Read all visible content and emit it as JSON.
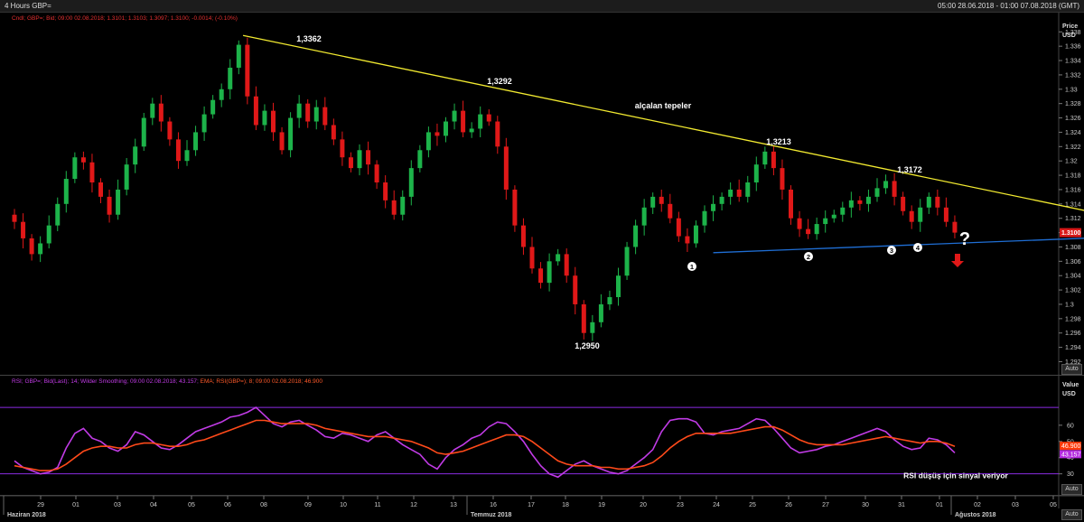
{
  "window": {
    "title": "4 Hours GBP=",
    "range": "05:00 28.06.2018 - 01:00 07.08.2018 (GMT)"
  },
  "price_panel": {
    "legend": "Cndl; GBP=; Bid; 09:00 02.08.2018; 1.3101; 1.3103; 1.3097; 1.3100; -0.0014; (-0.10%)",
    "axis_title": "Price",
    "axis_unit": "USD",
    "last_price_tag": "1.3100",
    "auto_label": "Auto"
  },
  "rsi_panel": {
    "legend_rsi": "RSI; GBP=; Bid(Last); 14; Wilder Smoothing; 09:00 02.08.2018; 43.157;",
    "legend_ema": "EMA; RSI(GBP=); 8; 09:00 02.08.2018; 46.900",
    "axis_title": "Value",
    "axis_unit": "USD",
    "ema_tag": "46.900",
    "rsi_tag": "43.157",
    "auto_label": "Auto"
  },
  "x_axis": {
    "ticks": [
      "29",
      "01",
      "03",
      "04",
      "05",
      "06",
      "08",
      "09",
      "10",
      "11",
      "12",
      "13",
      "16",
      "17",
      "18",
      "19",
      "20",
      "23",
      "24",
      "25",
      "26",
      "27",
      "30",
      "31",
      "01",
      "02",
      "03",
      "05",
      "07"
    ],
    "months": [
      "Haziran 2018",
      "Temmuz 2018",
      "Ağustos 2018"
    ],
    "auto_label": "Auto"
  },
  "annotations": {
    "peak1": "1,3362",
    "peak2": "1,3292",
    "peak3": "1,3213",
    "peak4": "1,3172",
    "low": "1,2950",
    "falling_peaks": "alçalan tepeler",
    "rsi_signal": "RSI düşüş için sinyal veriyor",
    "question": "?",
    "touch_points": [
      "1",
      "2",
      "3",
      "4"
    ]
  },
  "chart_data": [
    {
      "type": "candlestick",
      "instrument": "GBP=",
      "timeframe": "4 Hours",
      "y_ticks": [
        "1.338",
        "1.336",
        "1.334",
        "1.332",
        "1.33",
        "1.328",
        "1.326",
        "1.324",
        "1.322",
        "1.32",
        "1.318",
        "1.316",
        "1.314",
        "1.312",
        "1.31",
        "1.308",
        "1.306",
        "1.304",
        "1.302",
        "1.3",
        "1.298",
        "1.296",
        "1.294",
        "1.292"
      ],
      "ylim": [
        1.2908,
        1.3398
      ],
      "close": [
        1.3115,
        1.3092,
        1.307,
        1.3085,
        1.311,
        1.314,
        1.3175,
        1.3205,
        1.3198,
        1.317,
        1.315,
        1.3125,
        1.316,
        1.3195,
        1.322,
        1.326,
        1.328,
        1.3255,
        1.323,
        1.32,
        1.3215,
        1.324,
        1.3265,
        1.3285,
        1.33,
        1.333,
        1.3362,
        1.329,
        1.325,
        1.327,
        1.324,
        1.3215,
        1.326,
        1.328,
        1.3255,
        1.3275,
        1.325,
        1.323,
        1.3205,
        1.319,
        1.3215,
        1.3195,
        1.317,
        1.3145,
        1.3125,
        1.315,
        1.319,
        1.3215,
        1.324,
        1.3235,
        1.3255,
        1.327,
        1.324,
        1.3245,
        1.3265,
        1.3255,
        1.322,
        1.316,
        1.311,
        1.308,
        1.305,
        1.303,
        1.306,
        1.307,
        1.304,
        1.3,
        1.296,
        1.2975,
        1.3,
        1.301,
        1.304,
        1.308,
        1.311,
        1.3135,
        1.315,
        1.314,
        1.312,
        1.3095,
        1.3085,
        1.311,
        1.313,
        1.314,
        1.315,
        1.316,
        1.315,
        1.317,
        1.3195,
        1.3213,
        1.319,
        1.316,
        1.312,
        1.3105,
        1.3098,
        1.3112,
        1.312,
        1.3125,
        1.3135,
        1.3145,
        1.314,
        1.315,
        1.3162,
        1.3172,
        1.315,
        1.313,
        1.3115,
        1.3135,
        1.315,
        1.3135,
        1.3115,
        1.31
      ],
      "trendlines": [
        {
          "name": "alçalan tepeler",
          "from": [
            26.5,
            1.3375
          ],
          "to": [
            128,
            1.3121
          ],
          "color": "#f2ea30"
        },
        {
          "name": "support",
          "from": [
            81,
            1.3072
          ],
          "to": [
            128,
            1.3094
          ],
          "color": "#1f6ed4"
        }
      ],
      "last": 1.31,
      "colors": {
        "up": "#1db34a",
        "down": "#e01818",
        "background": "#000000"
      }
    },
    {
      "type": "line",
      "name": "RSI",
      "y_ticks": [
        "60",
        "50",
        "40",
        "30"
      ],
      "ylim": [
        17,
        85
      ],
      "reference_lines": [
        71,
        30
      ],
      "series": [
        {
          "name": "RSI",
          "color": "#c13be6",
          "values": [
            38,
            34,
            32,
            30,
            31,
            34,
            46,
            55,
            58,
            52,
            50,
            46,
            44,
            48,
            56,
            54,
            50,
            46,
            45,
            48,
            52,
            56,
            58,
            60,
            62,
            65,
            66,
            68,
            71,
            66,
            61,
            59,
            62,
            63,
            60,
            57,
            53,
            52,
            55,
            54,
            52,
            50,
            54,
            56,
            52,
            48,
            45,
            42,
            36,
            33,
            40,
            45,
            48,
            52,
            54,
            59,
            62,
            61,
            56,
            50,
            42,
            35,
            30,
            28,
            32,
            36,
            38,
            35,
            33,
            31,
            30,
            32,
            36,
            40,
            45,
            56,
            63,
            64,
            64,
            62,
            55,
            54,
            56,
            57,
            58,
            61,
            64,
            63,
            58,
            52,
            46,
            43,
            44,
            45,
            47,
            48,
            50,
            52,
            54,
            56,
            58,
            56,
            51,
            47,
            45,
            46,
            52,
            51,
            48,
            43
          ]
        },
        {
          "name": "EMA",
          "color": "#ff4a1a",
          "values": [
            35,
            34,
            33,
            32,
            32,
            33,
            36,
            40,
            44,
            46,
            47,
            47,
            46,
            46,
            48,
            49,
            49,
            48,
            47,
            47,
            48,
            50,
            51,
            53,
            55,
            57,
            59,
            61,
            63,
            63,
            62,
            61,
            61,
            61,
            61,
            60,
            58,
            57,
            56,
            55,
            54,
            53,
            53,
            53,
            52,
            51,
            50,
            48,
            46,
            43,
            42,
            43,
            44,
            46,
            48,
            50,
            52,
            54,
            54,
            53,
            50,
            46,
            42,
            38,
            36,
            35,
            35,
            35,
            34,
            34,
            33,
            33,
            34,
            35,
            37,
            41,
            46,
            50,
            53,
            55,
            55,
            55,
            55,
            55,
            56,
            57,
            58,
            59,
            59,
            57,
            54,
            51,
            49,
            48,
            48,
            48,
            48,
            49,
            50,
            51,
            52,
            53,
            52,
            51,
            50,
            49,
            50,
            50,
            49,
            47
          ]
        }
      ],
      "colors": {
        "reference": "#8a2be2"
      }
    }
  ]
}
